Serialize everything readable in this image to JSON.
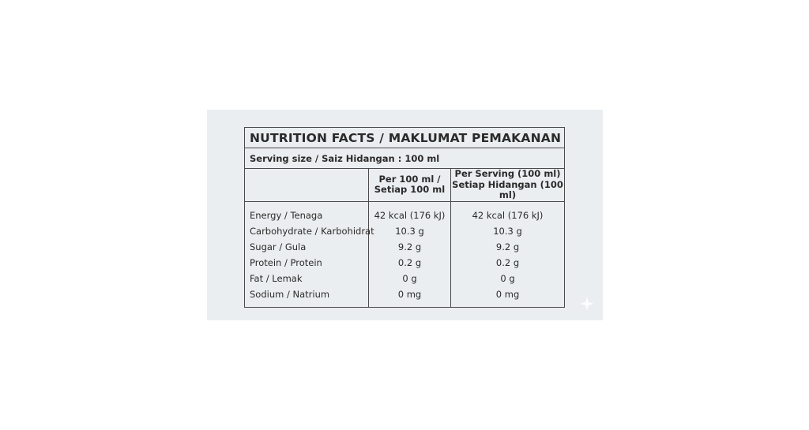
{
  "nutrition": {
    "title": "NUTRITION FACTS / MAKLUMAT PEMAKANAN",
    "serving_size": "Serving size / Saiz Hidangan : 100 ml",
    "headers": {
      "per_100_line1": "Per 100 ml /",
      "per_100_line2": "Setiap 100 ml",
      "per_serving_line1": "Per Serving (100 ml)",
      "per_serving_line2": "Setiap Hidangan (100 ml)"
    },
    "rows": [
      {
        "label": "Energy / Tenaga",
        "per_100": "42 kcal (176 kJ)",
        "per_serving": "42 kcal (176 kJ)"
      },
      {
        "label": "Carbohydrate / Karbohidrat",
        "per_100": "10.3 g",
        "per_serving": "10.3 g"
      },
      {
        "label": "Sugar / Gula",
        "per_100": "9.2 g",
        "per_serving": "9.2 g"
      },
      {
        "label": "Protein / Protein",
        "per_100": "0.2 g",
        "per_serving": "0.2 g"
      },
      {
        "label": "Fat / Lemak",
        "per_100": "0 g",
        "per_serving": "0 g"
      },
      {
        "label": "Sodium / Natrium",
        "per_100": "0 mg",
        "per_serving": "0 mg"
      }
    ]
  },
  "colors": {
    "panel_background": "#ebeef0",
    "border": "#4a4a4a",
    "text": "#2a2a2a"
  },
  "icons": {
    "corner": "sparkle-icon"
  }
}
